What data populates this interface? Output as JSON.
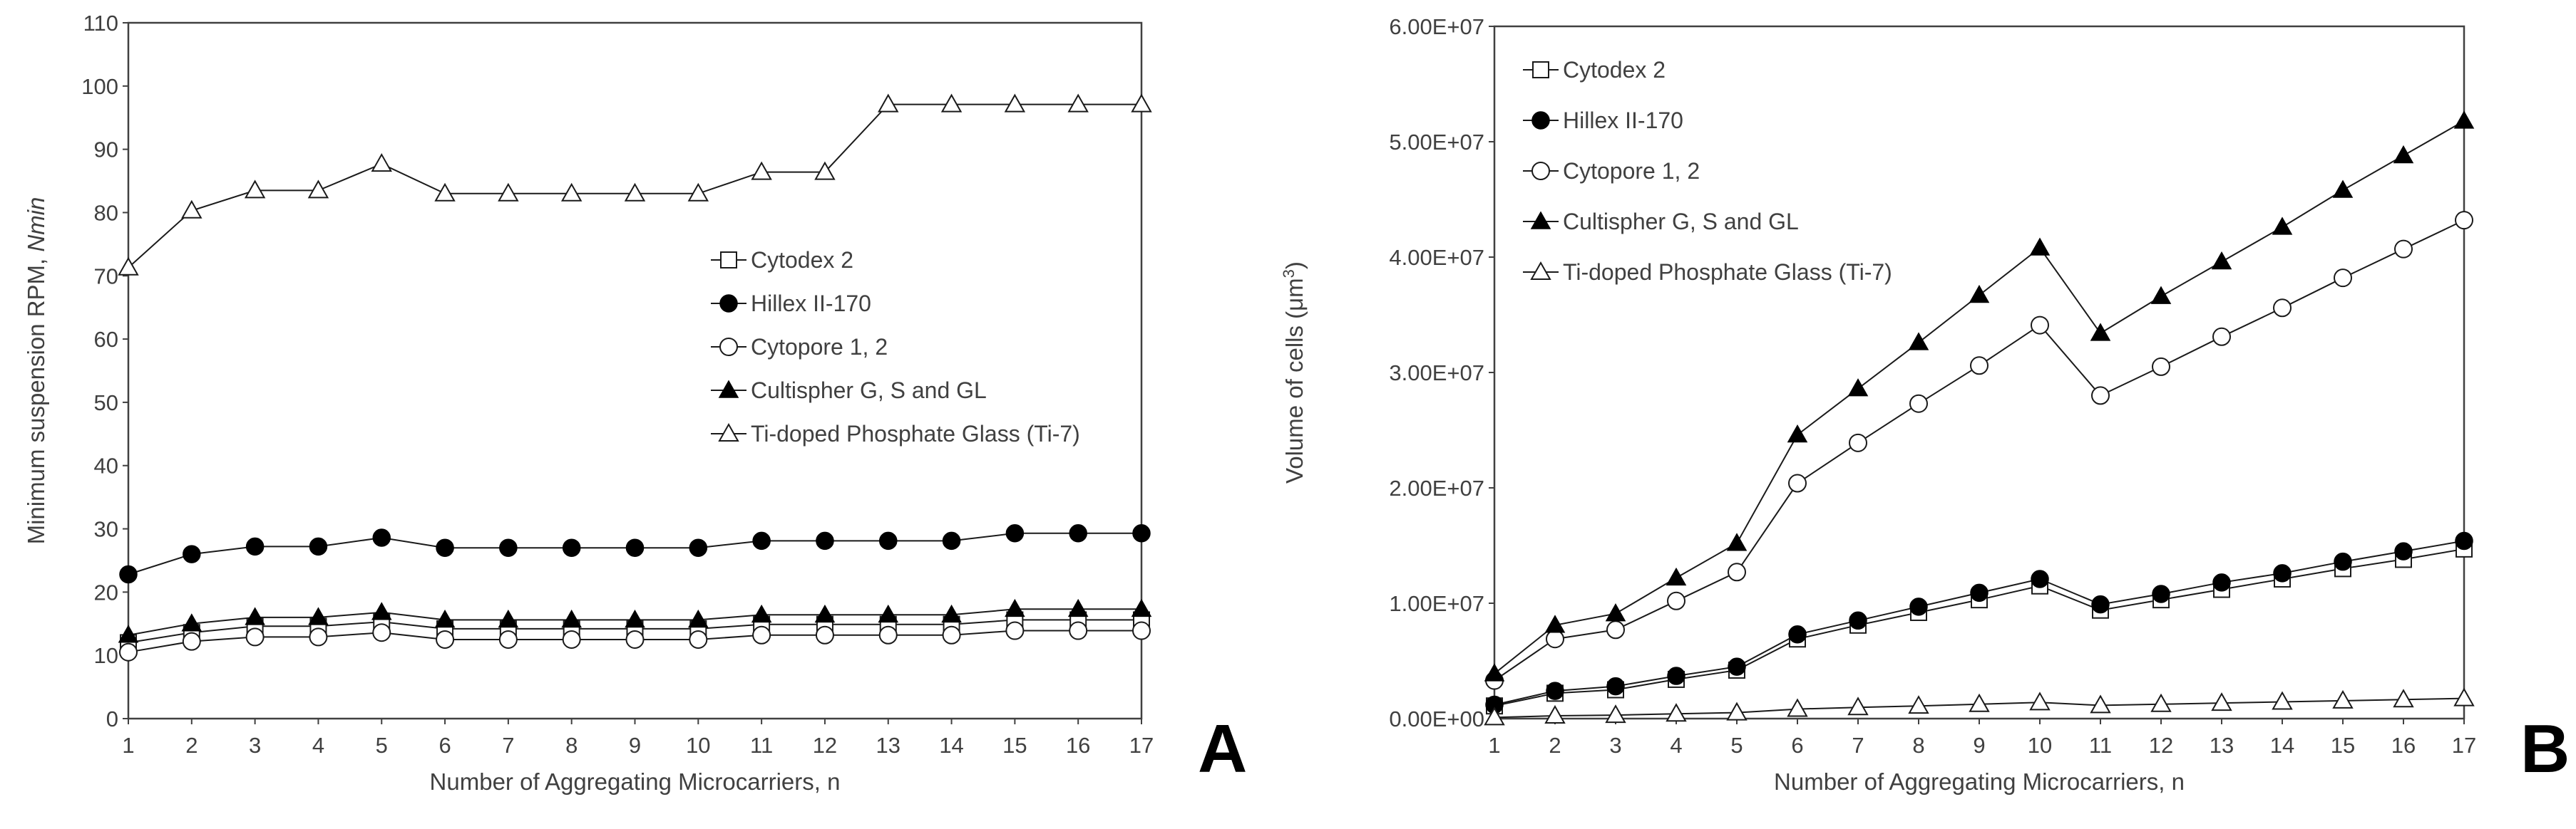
{
  "chart_data": [
    {
      "type": "line",
      "panel_label": "A",
      "xlabel": "Number of Aggregating Microcarriers, n",
      "ylabel_main": "Minimum suspension RPM, ",
      "ylabel_italic": "Nmin",
      "x": [
        1,
        2,
        3,
        4,
        5,
        6,
        7,
        8,
        9,
        10,
        11,
        12,
        13,
        14,
        15,
        16,
        17
      ],
      "xlim": [
        1,
        17
      ],
      "ylim": [
        0,
        110
      ],
      "yticks": [
        "0",
        "10",
        "20",
        "30",
        "40",
        "50",
        "60",
        "70",
        "80",
        "90",
        "100",
        "110"
      ],
      "grid": false,
      "legend_position": "center-right",
      "series": [
        {
          "name": "Cytodex 2",
          "marker": "open-square",
          "values": [
            12,
            13.6,
            14.6,
            14.6,
            15.3,
            14.2,
            14.2,
            14.2,
            14.2,
            14.2,
            14.9,
            14.9,
            14.9,
            14.9,
            15.6,
            15.6,
            15.6
          ]
        },
        {
          "name": "Hillex II-170",
          "marker": "filled-circle",
          "values": [
            22.8,
            26,
            27.2,
            27.2,
            28.6,
            27,
            27,
            27,
            27,
            27,
            28.1,
            28.1,
            28.1,
            28.1,
            29.3,
            29.3,
            29.3
          ]
        },
        {
          "name": "Cytopore 1, 2",
          "marker": "open-circle",
          "values": [
            10.5,
            12.2,
            12.9,
            12.9,
            13.6,
            12.5,
            12.5,
            12.5,
            12.5,
            12.5,
            13.2,
            13.2,
            13.2,
            13.2,
            13.9,
            13.9,
            13.9
          ]
        },
        {
          "name": "Cultispher G, S and GL",
          "marker": "filled-triangle",
          "values": [
            13.2,
            15,
            16,
            16,
            16.8,
            15.6,
            15.6,
            15.6,
            15.6,
            15.6,
            16.4,
            16.4,
            16.4,
            16.4,
            17.3,
            17.3,
            17.3
          ]
        },
        {
          "name": "Ti-doped Phosphate Glass (Ti-7)",
          "marker": "open-triangle",
          "values": [
            71.3,
            80.3,
            83.5,
            83.5,
            87.7,
            83,
            83,
            83,
            83,
            83,
            86.4,
            86.4,
            97.1,
            97.1,
            97.1,
            97.1,
            97.1
          ]
        }
      ]
    },
    {
      "type": "line",
      "panel_label": "B",
      "xlabel": "Number of Aggregating Microcarriers, n",
      "ylabel_main": "Volume of cells (μm",
      "ylabel_sup": "3",
      "ylabel_end": ")",
      "x": [
        1,
        2,
        3,
        4,
        5,
        6,
        7,
        8,
        9,
        10,
        11,
        12,
        13,
        14,
        15,
        16,
        17
      ],
      "xlim": [
        1,
        17
      ],
      "ylim": [
        0,
        60000000
      ],
      "yticks": [
        "0.00E+00",
        "1.00E+07",
        "2.00E+07",
        "3.00E+07",
        "4.00E+07",
        "5.00E+07",
        "6.00E+07"
      ],
      "grid": false,
      "legend_position": "top-left",
      "series": [
        {
          "name": "Cytodex 2",
          "marker": "open-square",
          "values": [
            1100000,
            2200000,
            2500000,
            3400000,
            4200000,
            6900000,
            8100000,
            9200000,
            10300000,
            11500000,
            9400000,
            10300000,
            11200000,
            12100000,
            13000000,
            13800000,
            14700000
          ]
        },
        {
          "name": "Hillex II-170",
          "marker": "filled-circle",
          "values": [
            1200000,
            2400000,
            2800000,
            3700000,
            4500000,
            7300000,
            8500000,
            9700000,
            10900000,
            12100000,
            9900000,
            10800000,
            11800000,
            12600000,
            13600000,
            14500000,
            15400000
          ]
        },
        {
          "name": "Cytopore 1, 2",
          "marker": "open-circle",
          "values": [
            3300000,
            6900000,
            7700000,
            10200000,
            12700000,
            20400000,
            23900000,
            27300000,
            30600000,
            34100000,
            28000000,
            30500000,
            33100000,
            35600000,
            38200000,
            40700000,
            43200000
          ]
        },
        {
          "name": "Cultispher G, S and GL",
          "marker": "filled-triangle",
          "values": [
            3900000,
            8100000,
            9100000,
            12200000,
            15200000,
            24600000,
            28600000,
            32600000,
            36700000,
            40800000,
            33400000,
            36600000,
            39600000,
            42600000,
            45800000,
            48800000,
            51800000
          ]
        },
        {
          "name": "Ti-doped Phosphate Glass (Ti-7)",
          "marker": "open-triangle",
          "values": [
            100000,
            250000,
            300000,
            420000,
            520000,
            830000,
            970000,
            1100000,
            1250000,
            1400000,
            1150000,
            1250000,
            1350000,
            1450000,
            1550000,
            1650000,
            1750000
          ]
        }
      ]
    }
  ]
}
